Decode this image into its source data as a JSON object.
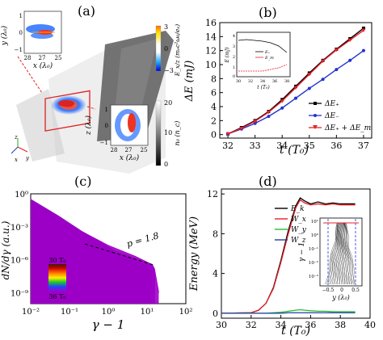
{
  "panel_labels": {
    "a": "(a)",
    "b": "(b)",
    "c": "(c)",
    "d": "(d)"
  },
  "panel_a": {
    "inset_top": {
      "ylabel": "y (λ₀)",
      "xlabel": "x (λ₀)",
      "yticks": [
        "1",
        "0",
        "−1"
      ],
      "xticks": [
        "28",
        "27",
        "25"
      ]
    },
    "inset_bottom": {
      "ylabel": "z (λ₀)",
      "xlabel": "x (λ₀)",
      "yticks": [
        "1",
        "0",
        "−1"
      ],
      "xticks": [
        "28",
        "27",
        "25"
      ]
    },
    "colorbar_e": {
      "label": "E_x/z (mₑc²ω₀/eₑ)",
      "ticks": [
        "3",
        "0",
        "−3"
      ]
    },
    "colorbar_n": {
      "label": "n₀ (n_c)",
      "ticks": [
        "20",
        "10",
        "0"
      ]
    },
    "axes_glyph": {
      "x": "x",
      "y": "y",
      "z": "z"
    }
  },
  "panel_b": {
    "xlabel": "t (T₀)",
    "ylabel": "ΔE (mJ)",
    "xticks": [
      "32",
      "33",
      "34",
      "35",
      "36",
      "37"
    ],
    "yticks": [
      "0",
      "2",
      "4",
      "6",
      "8",
      "10",
      "12",
      "14",
      "16"
    ],
    "legend": [
      "ΔE₊",
      "ΔE₋",
      "ΔE₊ + ΔE_m"
    ],
    "inset": {
      "ylabel": "E (mJ)",
      "xlabel": "t (T₀)",
      "yticks": [
        "4",
        "3",
        "2",
        "1",
        "0"
      ],
      "xticks": [
        "30",
        "32",
        "34",
        "36",
        "38"
      ],
      "legend": [
        "E₊",
        "E_m"
      ]
    }
  },
  "panel_c": {
    "xlabel": "γ − 1",
    "ylabel": "dN/dγ (a.u.)",
    "xticks": [
      "10⁻²",
      "10⁻¹",
      "10⁰",
      "10¹",
      "10²"
    ],
    "yticks": [
      "10⁰",
      "10⁻³",
      "10⁻⁶",
      "10⁻⁹"
    ],
    "annotation": "p = 1.8",
    "colorbar_top": "30 T₀",
    "colorbar_bottom": "36 T₀"
  },
  "panel_d": {
    "xlabel": "t (T₀)",
    "ylabel": "Energy (MeV)",
    "xticks": [
      "30",
      "32",
      "34",
      "36",
      "38",
      "40"
    ],
    "yticks": [
      "0",
      "4",
      "8",
      "12"
    ],
    "legend": [
      "E_k",
      "W_x",
      "W_y",
      "W_z"
    ],
    "inset": {
      "ylabel": "γ − 1",
      "xlabel": "y (λ₀)",
      "xticks": [
        "−0.5",
        "0",
        "0.5"
      ],
      "yticks": [
        "10¹",
        "10⁰",
        "10⁻¹",
        "10⁻²",
        "10⁻³"
      ]
    }
  },
  "colors": {
    "red": "#e8202a",
    "blue": "#2233cc",
    "black": "#000000",
    "green": "#22bb33",
    "navy": "#1f3f9f"
  },
  "chart_data": [
    {
      "type": "line",
      "xlabel": "t (T₀)",
      "ylabel": "ΔE (mJ)",
      "xlim": [
        31.7,
        37.3
      ],
      "ylim": [
        -0.5,
        16
      ],
      "x": [
        32,
        32.5,
        33,
        33.5,
        34,
        34.5,
        35,
        35.5,
        36,
        36.5,
        37
      ],
      "series": [
        {
          "name": "ΔE₊",
          "values": [
            0.1,
            1.0,
            2.0,
            3.3,
            5.0,
            6.9,
            8.8,
            10.6,
            12.2,
            13.7,
            15.2
          ]
        },
        {
          "name": "ΔE₋",
          "values": [
            0.1,
            0.8,
            1.6,
            2.6,
            3.8,
            5.2,
            6.6,
            7.9,
            9.3,
            10.6,
            12.0
          ]
        },
        {
          "name": "ΔE₊ + ΔE_m",
          "values": [
            0.1,
            0.9,
            1.9,
            3.2,
            4.8,
            6.7,
            8.6,
            10.5,
            12.1,
            13.5,
            14.9
          ]
        }
      ]
    },
    {
      "type": "line",
      "xlabel": "γ − 1",
      "ylabel": "dN/dγ (a.u.)",
      "xscale": "log",
      "yscale": "log",
      "xlim": [
        0.01,
        100
      ],
      "ylim": [
        1e-10,
        1
      ],
      "series": [
        {
          "name": "30 T₀",
          "x": [
            0.01,
            0.05,
            0.2,
            0.5,
            1.0,
            1.5
          ],
          "values": [
            0.3,
            0.01,
            0.0004,
            2e-05,
            5e-07,
            1e-08
          ]
        },
        {
          "name": "36 T₀",
          "x": [
            0.01,
            0.05,
            0.2,
            1.0,
            5.0,
            15.0,
            20.0
          ],
          "values": [
            0.3,
            0.01,
            0.0004,
            2e-05,
            2e-06,
            3e-07,
            1e-09
          ]
        }
      ]
    },
    {
      "type": "line",
      "xlabel": "t (T₀)",
      "ylabel": "Energy (MeV)",
      "xlim": [
        30,
        40
      ],
      "ylim": [
        -0.5,
        12.5
      ],
      "x": [
        30,
        32,
        32.5,
        33,
        33.5,
        34,
        34.5,
        35,
        35.3,
        35.6,
        36,
        36.5,
        37,
        37.5,
        38,
        39
      ],
      "series": [
        {
          "name": "E_k",
          "values": [
            0,
            0.05,
            0.3,
            1.0,
            2.6,
            5.3,
            8.3,
            10.8,
            11.6,
            11.3,
            11.0,
            11.2,
            11.0,
            11.1,
            11.0,
            11.0
          ]
        },
        {
          "name": "W_x",
          "values": [
            0,
            0.05,
            0.3,
            1.0,
            2.5,
            5.1,
            8.0,
            10.6,
            11.4,
            11.1,
            10.9,
            11.0,
            10.9,
            11.0,
            10.9,
            10.9
          ]
        },
        {
          "name": "W_y",
          "values": [
            0,
            0,
            0,
            0,
            0.05,
            0.1,
            0.2,
            0.3,
            0.35,
            0.3,
            0.25,
            0.2,
            0.2,
            0.15,
            0.15,
            0.15
          ]
        },
        {
          "name": "W_z",
          "values": [
            0,
            0,
            0,
            0,
            0,
            0,
            0.05,
            0.05,
            0.05,
            0.05,
            0.05,
            0.05,
            0.05,
            0.05,
            0.05,
            0.05
          ]
        }
      ]
    }
  ]
}
